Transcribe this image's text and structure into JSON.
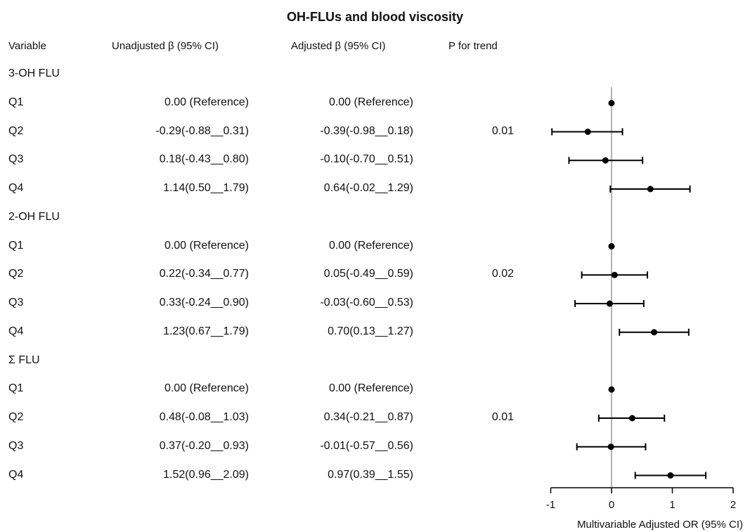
{
  "title": "OH-FLUs and blood viscosity",
  "headers": {
    "variable": "Variable",
    "unadjusted": "Unadjusted β (95% CI)",
    "adjusted": "Adjusted β (95% CI)",
    "p_trend": "P for trend"
  },
  "rows": [
    {
      "variable": "3-OH FLU",
      "group": true
    },
    {
      "variable": "Q1",
      "unadjusted": "0.00 (Reference)",
      "adjusted": "0.00 (Reference)",
      "p": ""
    },
    {
      "variable": "Q2",
      "unadjusted": "-0.29(-0.88__0.31)",
      "adjusted": "-0.39(-0.98__0.18)",
      "p": "0.01"
    },
    {
      "variable": "Q3",
      "unadjusted": "0.18(-0.43__0.80)",
      "adjusted": "-0.10(-0.70__0.51)",
      "p": ""
    },
    {
      "variable": "Q4",
      "unadjusted": "1.14(0.50__1.79)",
      "adjusted": "0.64(-0.02__1.29)",
      "p": ""
    },
    {
      "variable": "2-OH FLU",
      "group": true
    },
    {
      "variable": "Q1",
      "unadjusted": "0.00 (Reference)",
      "adjusted": "0.00 (Reference)",
      "p": ""
    },
    {
      "variable": "Q2",
      "unadjusted": "0.22(-0.34__0.77)",
      "adjusted": "0.05(-0.49__0.59)",
      "p": "0.02"
    },
    {
      "variable": "Q3",
      "unadjusted": "0.33(-0.24__0.90)",
      "adjusted": "-0.03(-0.60__0.53)",
      "p": ""
    },
    {
      "variable": "Q4",
      "unadjusted": "1.23(0.67__1.79)",
      "adjusted": "0.70(0.13__1.27)",
      "p": ""
    },
    {
      "variable": "Σ FLU",
      "group": true
    },
    {
      "variable": "Q1",
      "unadjusted": "0.00 (Reference)",
      "adjusted": "0.00 (Reference)",
      "p": ""
    },
    {
      "variable": "Q2",
      "unadjusted": "0.48(-0.08__1.03)",
      "adjusted": "0.34(-0.21__0.87)",
      "p": "0.01"
    },
    {
      "variable": "Q3",
      "unadjusted": "0.37(-0.20__0.93)",
      "adjusted": "-0.01(-0.57__0.56)",
      "p": ""
    },
    {
      "variable": "Q4",
      "unadjusted": "1.52(0.96__2.09)",
      "adjusted": "0.97(0.39__1.55)",
      "p": ""
    }
  ],
  "chart_data": {
    "type": "forest",
    "xlabel": "Multivariable Adjusted OR (95% CI)",
    "xlim": [
      -1,
      2
    ],
    "xticks": [
      -1,
      0,
      1,
      2
    ],
    "reference_line": 0,
    "points": [
      {
        "label": "3-OH FLU Q1",
        "est": 0.0,
        "lo": 0.0,
        "hi": 0.0
      },
      {
        "label": "3-OH FLU Q2",
        "est": -0.39,
        "lo": -0.98,
        "hi": 0.18
      },
      {
        "label": "3-OH FLU Q3",
        "est": -0.1,
        "lo": -0.7,
        "hi": 0.51
      },
      {
        "label": "3-OH FLU Q4",
        "est": 0.64,
        "lo": -0.02,
        "hi": 1.29
      },
      {
        "label": "2-OH FLU Q1",
        "est": 0.0,
        "lo": 0.0,
        "hi": 0.0
      },
      {
        "label": "2-OH FLU Q2",
        "est": 0.05,
        "lo": -0.49,
        "hi": 0.59
      },
      {
        "label": "2-OH FLU Q3",
        "est": -0.03,
        "lo": -0.6,
        "hi": 0.53
      },
      {
        "label": "2-OH FLU Q4",
        "est": 0.7,
        "lo": 0.13,
        "hi": 1.27
      },
      {
        "label": "Σ FLU Q1",
        "est": 0.0,
        "lo": 0.0,
        "hi": 0.0
      },
      {
        "label": "Σ FLU Q2",
        "est": 0.34,
        "lo": -0.21,
        "hi": 0.87
      },
      {
        "label": "Σ FLU Q3",
        "est": -0.01,
        "lo": -0.57,
        "hi": 0.56
      },
      {
        "label": "Σ FLU Q4",
        "est": 0.97,
        "lo": 0.39,
        "hi": 1.55
      }
    ],
    "colors": {
      "marker": "#000000",
      "reference_line": "#999999"
    }
  }
}
